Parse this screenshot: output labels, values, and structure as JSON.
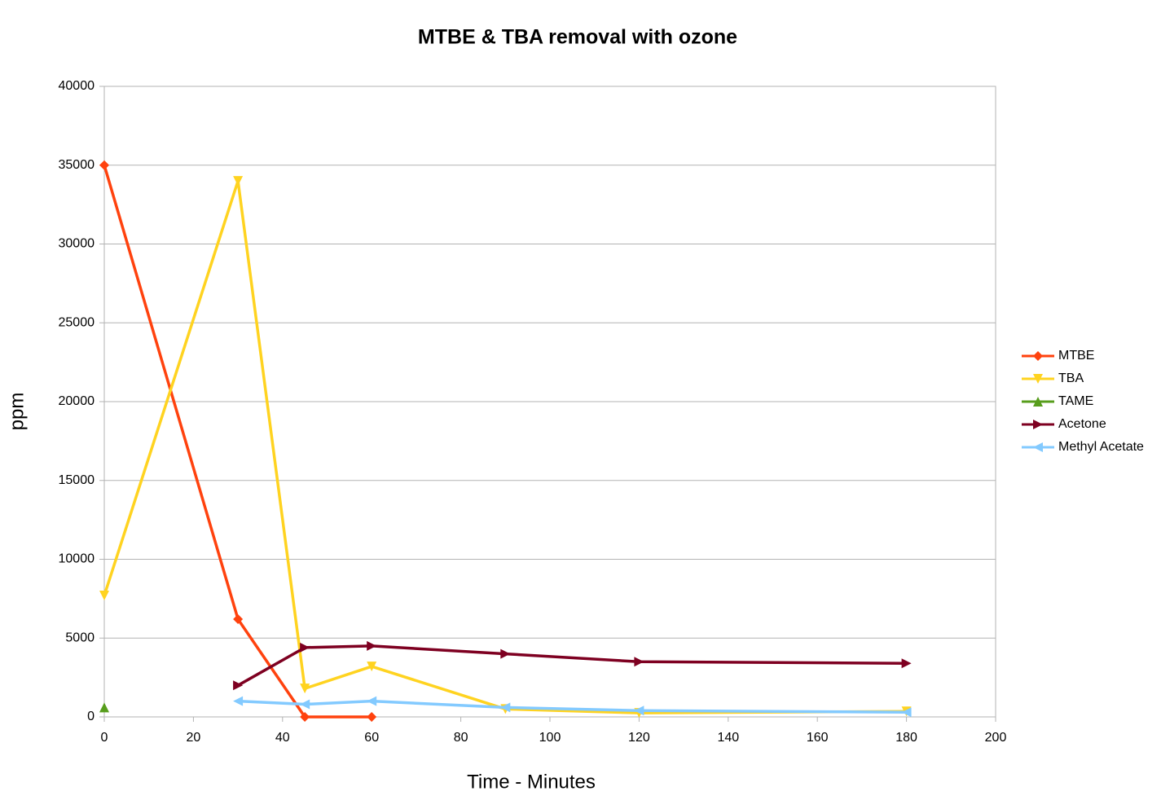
{
  "chart_data": {
    "type": "line",
    "title": "MTBE & TBA removal with ozone",
    "x_label": "Time - Minutes",
    "y_label": "ppm",
    "x": [
      0,
      30,
      45,
      60,
      90,
      120,
      180
    ],
    "series": [
      {
        "name": "MTBE",
        "color": "#ff420e",
        "marker": "diamond",
        "values": [
          35000,
          6200,
          0,
          0,
          null,
          null,
          null
        ]
      },
      {
        "name": "TBA",
        "color": "#ffd320",
        "marker": "triangle-down",
        "values": [
          7700,
          34000,
          1800,
          3200,
          500,
          250,
          350
        ]
      },
      {
        "name": "TAME",
        "color": "#579d1c",
        "marker": "triangle-up",
        "values": [
          600,
          null,
          null,
          null,
          null,
          null,
          null
        ]
      },
      {
        "name": "Acetone",
        "color": "#7e0021",
        "marker": "triangle-right",
        "values": [
          null,
          2000,
          4400,
          4500,
          4000,
          3500,
          3400
        ]
      },
      {
        "name": "Methyl Acetate",
        "color": "#83caff",
        "marker": "triangle-left",
        "values": [
          null,
          1000,
          800,
          1000,
          600,
          400,
          300
        ]
      }
    ],
    "xlim": [
      0,
      200
    ],
    "xticks": [
      0,
      20,
      40,
      60,
      80,
      100,
      120,
      140,
      160,
      180,
      200
    ],
    "ylim": [
      0,
      40000
    ],
    "yticks": [
      0,
      5000,
      10000,
      15000,
      20000,
      25000,
      30000,
      35000,
      40000
    ],
    "grid": true,
    "legend": "right"
  }
}
